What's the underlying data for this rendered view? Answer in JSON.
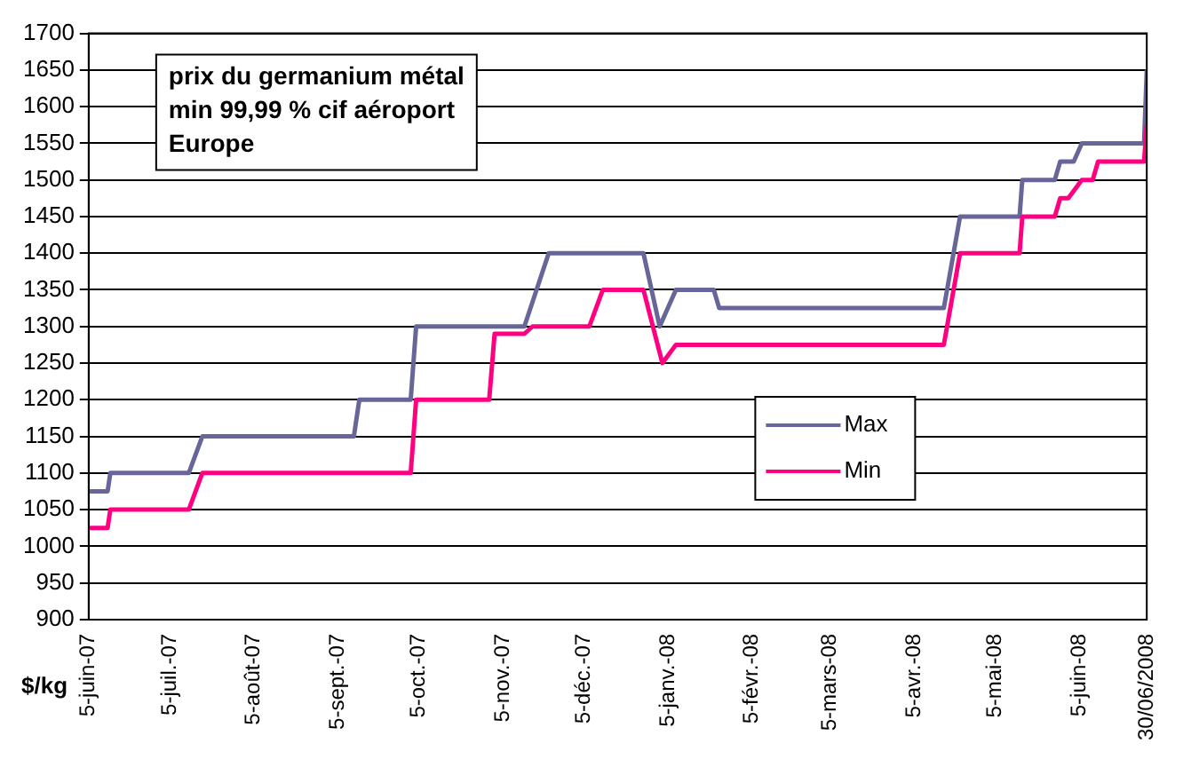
{
  "chart_data": {
    "type": "line",
    "title": "prix du germanium métal min 99,99 % cif aéroport Europe",
    "ylabel": "$/kg",
    "xlim": [
      "2007-06-05",
      "2008-06-30"
    ],
    "xticks": [
      {
        "value": "2007-06-05",
        "label": "5-juin-07"
      },
      {
        "value": "2007-07-05",
        "label": "5-juil.-07"
      },
      {
        "value": "2007-08-05",
        "label": "5-août-07"
      },
      {
        "value": "2007-09-05",
        "label": "5-sept.-07"
      },
      {
        "value": "2007-10-05",
        "label": "5-oct.-07"
      },
      {
        "value": "2007-11-05",
        "label": "5-nov.-07"
      },
      {
        "value": "2007-12-05",
        "label": "5-déc.-07"
      },
      {
        "value": "2008-01-05",
        "label": "5-janv.-08"
      },
      {
        "value": "2008-02-05",
        "label": "5-févr.-08"
      },
      {
        "value": "2008-03-05",
        "label": "5-mars-08"
      },
      {
        "value": "2008-04-05",
        "label": "5-avr.-08"
      },
      {
        "value": "2008-05-05",
        "label": "5-mai-08"
      },
      {
        "value": "2008-06-05",
        "label": "5-juin-08"
      },
      {
        "value": "2008-06-30",
        "label": "30/06/2008"
      }
    ],
    "ylim": [
      900,
      1700
    ],
    "yticks": [
      900,
      950,
      1000,
      1050,
      1100,
      1150,
      1200,
      1250,
      1300,
      1350,
      1400,
      1450,
      1500,
      1550,
      1600,
      1650,
      1700
    ],
    "grid": "y",
    "legend": "bottom right",
    "marker": "none",
    "line_style": "solid",
    "series": [
      {
        "name": "Max",
        "color": "#666699",
        "x": [
          "2007-06-05",
          "2007-06-12",
          "2007-06-13",
          "2007-07-12",
          "2007-07-17",
          "2007-09-11",
          "2007-09-13",
          "2007-10-02",
          "2007-10-04",
          "2007-11-13",
          "2007-11-22",
          "2007-12-27",
          "2008-01-02",
          "2008-01-08",
          "2008-01-22",
          "2008-01-24",
          "2008-04-16",
          "2008-04-22",
          "2008-05-14",
          "2008-05-15",
          "2008-05-27",
          "2008-05-29",
          "2008-06-03",
          "2008-06-06",
          "2008-06-29",
          "2008-06-30"
        ],
        "values": [
          1075,
          1075,
          1100,
          1100,
          1150,
          1150,
          1200,
          1200,
          1300,
          1300,
          1400,
          1400,
          1300,
          1350,
          1350,
          1325,
          1325,
          1450,
          1450,
          1500,
          1500,
          1525,
          1525,
          1550,
          1550,
          1650
        ]
      },
      {
        "name": "Min",
        "color": "#ff0080",
        "x": [
          "2007-06-05",
          "2007-06-12",
          "2007-06-13",
          "2007-07-12",
          "2007-07-17",
          "2007-10-02",
          "2007-10-04",
          "2007-10-31",
          "2007-11-02",
          "2007-11-13",
          "2007-11-16",
          "2007-12-07",
          "2007-12-12",
          "2007-12-27",
          "2008-01-03",
          "2008-01-08",
          "2008-04-16",
          "2008-04-22",
          "2008-05-14",
          "2008-05-15",
          "2008-05-27",
          "2008-05-29",
          "2008-06-01",
          "2008-06-06",
          "2008-06-10",
          "2008-06-12",
          "2008-06-29",
          "2008-06-30"
        ],
        "values": [
          1025,
          1025,
          1050,
          1050,
          1100,
          1100,
          1200,
          1200,
          1290,
          1290,
          1300,
          1300,
          1350,
          1350,
          1250,
          1275,
          1275,
          1400,
          1400,
          1450,
          1450,
          1475,
          1475,
          1500,
          1500,
          1525,
          1525,
          1575
        ]
      }
    ]
  }
}
